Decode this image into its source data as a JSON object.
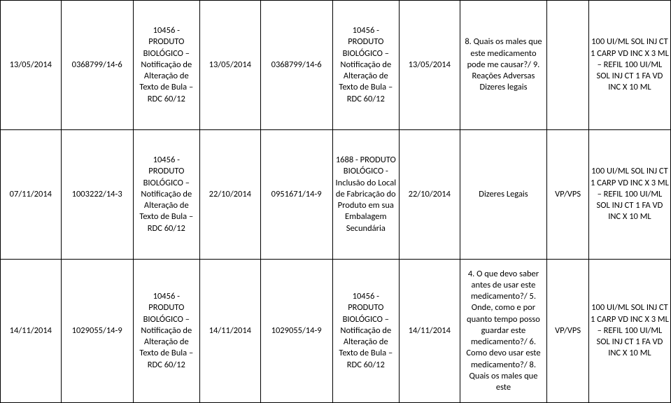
{
  "table": {
    "columns": [
      {
        "key": "c0",
        "width": 80
      },
      {
        "key": "c1",
        "width": 95
      },
      {
        "key": "c2",
        "width": 88
      },
      {
        "key": "c3",
        "width": 80
      },
      {
        "key": "c4",
        "width": 95
      },
      {
        "key": "c5",
        "width": 88
      },
      {
        "key": "c6",
        "width": 80
      },
      {
        "key": "c7",
        "width": 115
      },
      {
        "key": "c8",
        "width": 55
      },
      {
        "key": "c9",
        "width": 108
      }
    ],
    "rows": [
      {
        "c0": "13/05/2014",
        "c1": "0368799/14-6",
        "c2": "10456 - PRODUTO BIOLÓGICO – Notificação de Alteração de Texto de Bula – RDC 60/12",
        "c3": "13/05/2014",
        "c4": "0368799/14-6",
        "c5": "10456 - PRODUTO BIOLÓGICO – Notificação de Alteração de Texto de Bula – RDC 60/12",
        "c6": "13/05/2014",
        "c7": "8. Quais os males que este medicamento pode me causar?/ 9. Reações Adversas Dizeres legais",
        "c8": "",
        "c9": "100 UI/ML SOL INJ CT 1 CARP VD INC X 3 ML – REFIL 100 UI/ML SOL INJ CT 1 FA VD INC X 10 ML"
      },
      {
        "c0": "07/11/2014",
        "c1": "1003222/14-3",
        "c2": "10456 - PRODUTO BIOLÓGICO – Notificação de Alteração de Texto de Bula – RDC 60/12",
        "c3": "22/10/2014",
        "c4": "0951671/14-9",
        "c5": "1688 - PRODUTO BIOLÓGICO - Inclusão do Local de Fabricação do Produto em sua Embalagem Secundária",
        "c6": "22/10/2014",
        "c7": "Dizeres Legais",
        "c8": "VP/VPS",
        "c9": "100 UI/ML SOL INJ CT 1 CARP VD INC X 3 ML – REFIL 100 UI/ML SOL INJ CT 1 FA VD INC X 10 ML"
      },
      {
        "c0": "14/11/2014",
        "c1": "1029055/14-9",
        "c2": "10456 - PRODUTO BIOLÓGICO – Notificação de Alteração de Texto de Bula – RDC 60/12",
        "c3": "14/11/2014",
        "c4": "1029055/14-9",
        "c5": "10456 - PRODUTO BIOLÓGICO – Notificação de Alteração de Texto de Bula – RDC 60/12",
        "c6": "14/11/2014",
        "c7": "4. O que devo saber antes de usar este medicamento?/ 5. Onde, como e por quanto tempo posso guardar este medicamento?/ 6. Como devo usar este medicamento?/ 8. Quais os males que este",
        "c8": "VP/VPS",
        "c9": "100 UI/ML SOL INJ CT 1 CARP VD INC X 3 ML – REFIL 100 UI/ML SOL INJ CT 1 FA VD INC X 10 ML"
      }
    ]
  },
  "styling": {
    "font_family": "Calibri, Arial, sans-serif",
    "font_size_pt": 10,
    "border_color": "#000000",
    "background_color": "#ffffff",
    "text_color": "#000000",
    "text_align": "center",
    "vertical_align": "middle"
  }
}
